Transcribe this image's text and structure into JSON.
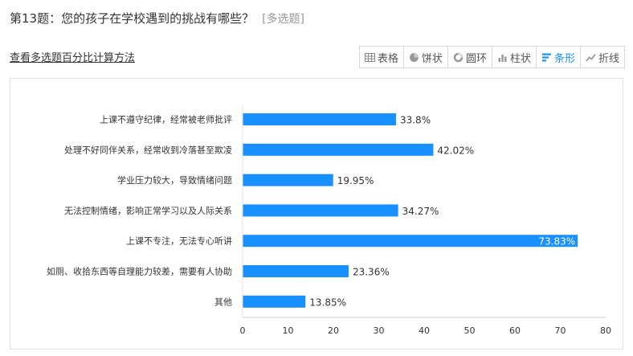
{
  "header": {
    "question": "第13题：您的孩子在学校遇到的挑战有哪些？",
    "question_type": "[多选题]"
  },
  "method_link": "查看多选题百分比计算方法",
  "toolbar": {
    "buttons": [
      {
        "label": "表格",
        "icon": "table-icon",
        "active": false
      },
      {
        "label": "饼状",
        "icon": "pie-icon",
        "active": false
      },
      {
        "label": "圆环",
        "icon": "donut-icon",
        "active": false
      },
      {
        "label": "柱状",
        "icon": "column-icon",
        "active": false
      },
      {
        "label": "条形",
        "icon": "bar-icon",
        "active": true
      },
      {
        "label": "折线",
        "icon": "line-icon",
        "active": false
      }
    ],
    "active_color": "#1890ff"
  },
  "chart_data": {
    "type": "bar",
    "orientation": "horizontal",
    "categories": [
      "上课不遵守纪律，经常被老师批评",
      "处理不好同伴关系，经常收到冷落甚至欺凌",
      "学业压力较大，导致情绪问题",
      "无法控制情绪，影响正常学习以及人际关系",
      "上课不专注，无法专心听讲",
      "如厕、收拾东西等自理能力较差，需要有人协助",
      "其他"
    ],
    "values": [
      33.8,
      42.02,
      19.95,
      34.27,
      73.83,
      23.36,
      13.85
    ],
    "value_labels": [
      "33.8%",
      "42.02%",
      "19.95%",
      "34.27%",
      "73.83%",
      "23.36%",
      "13.85%"
    ],
    "xlim": [
      0,
      80
    ],
    "xticks": [
      0,
      10,
      20,
      30,
      40,
      50,
      60,
      70,
      80
    ],
    "bar_color": "#1890ff",
    "grid": false
  }
}
